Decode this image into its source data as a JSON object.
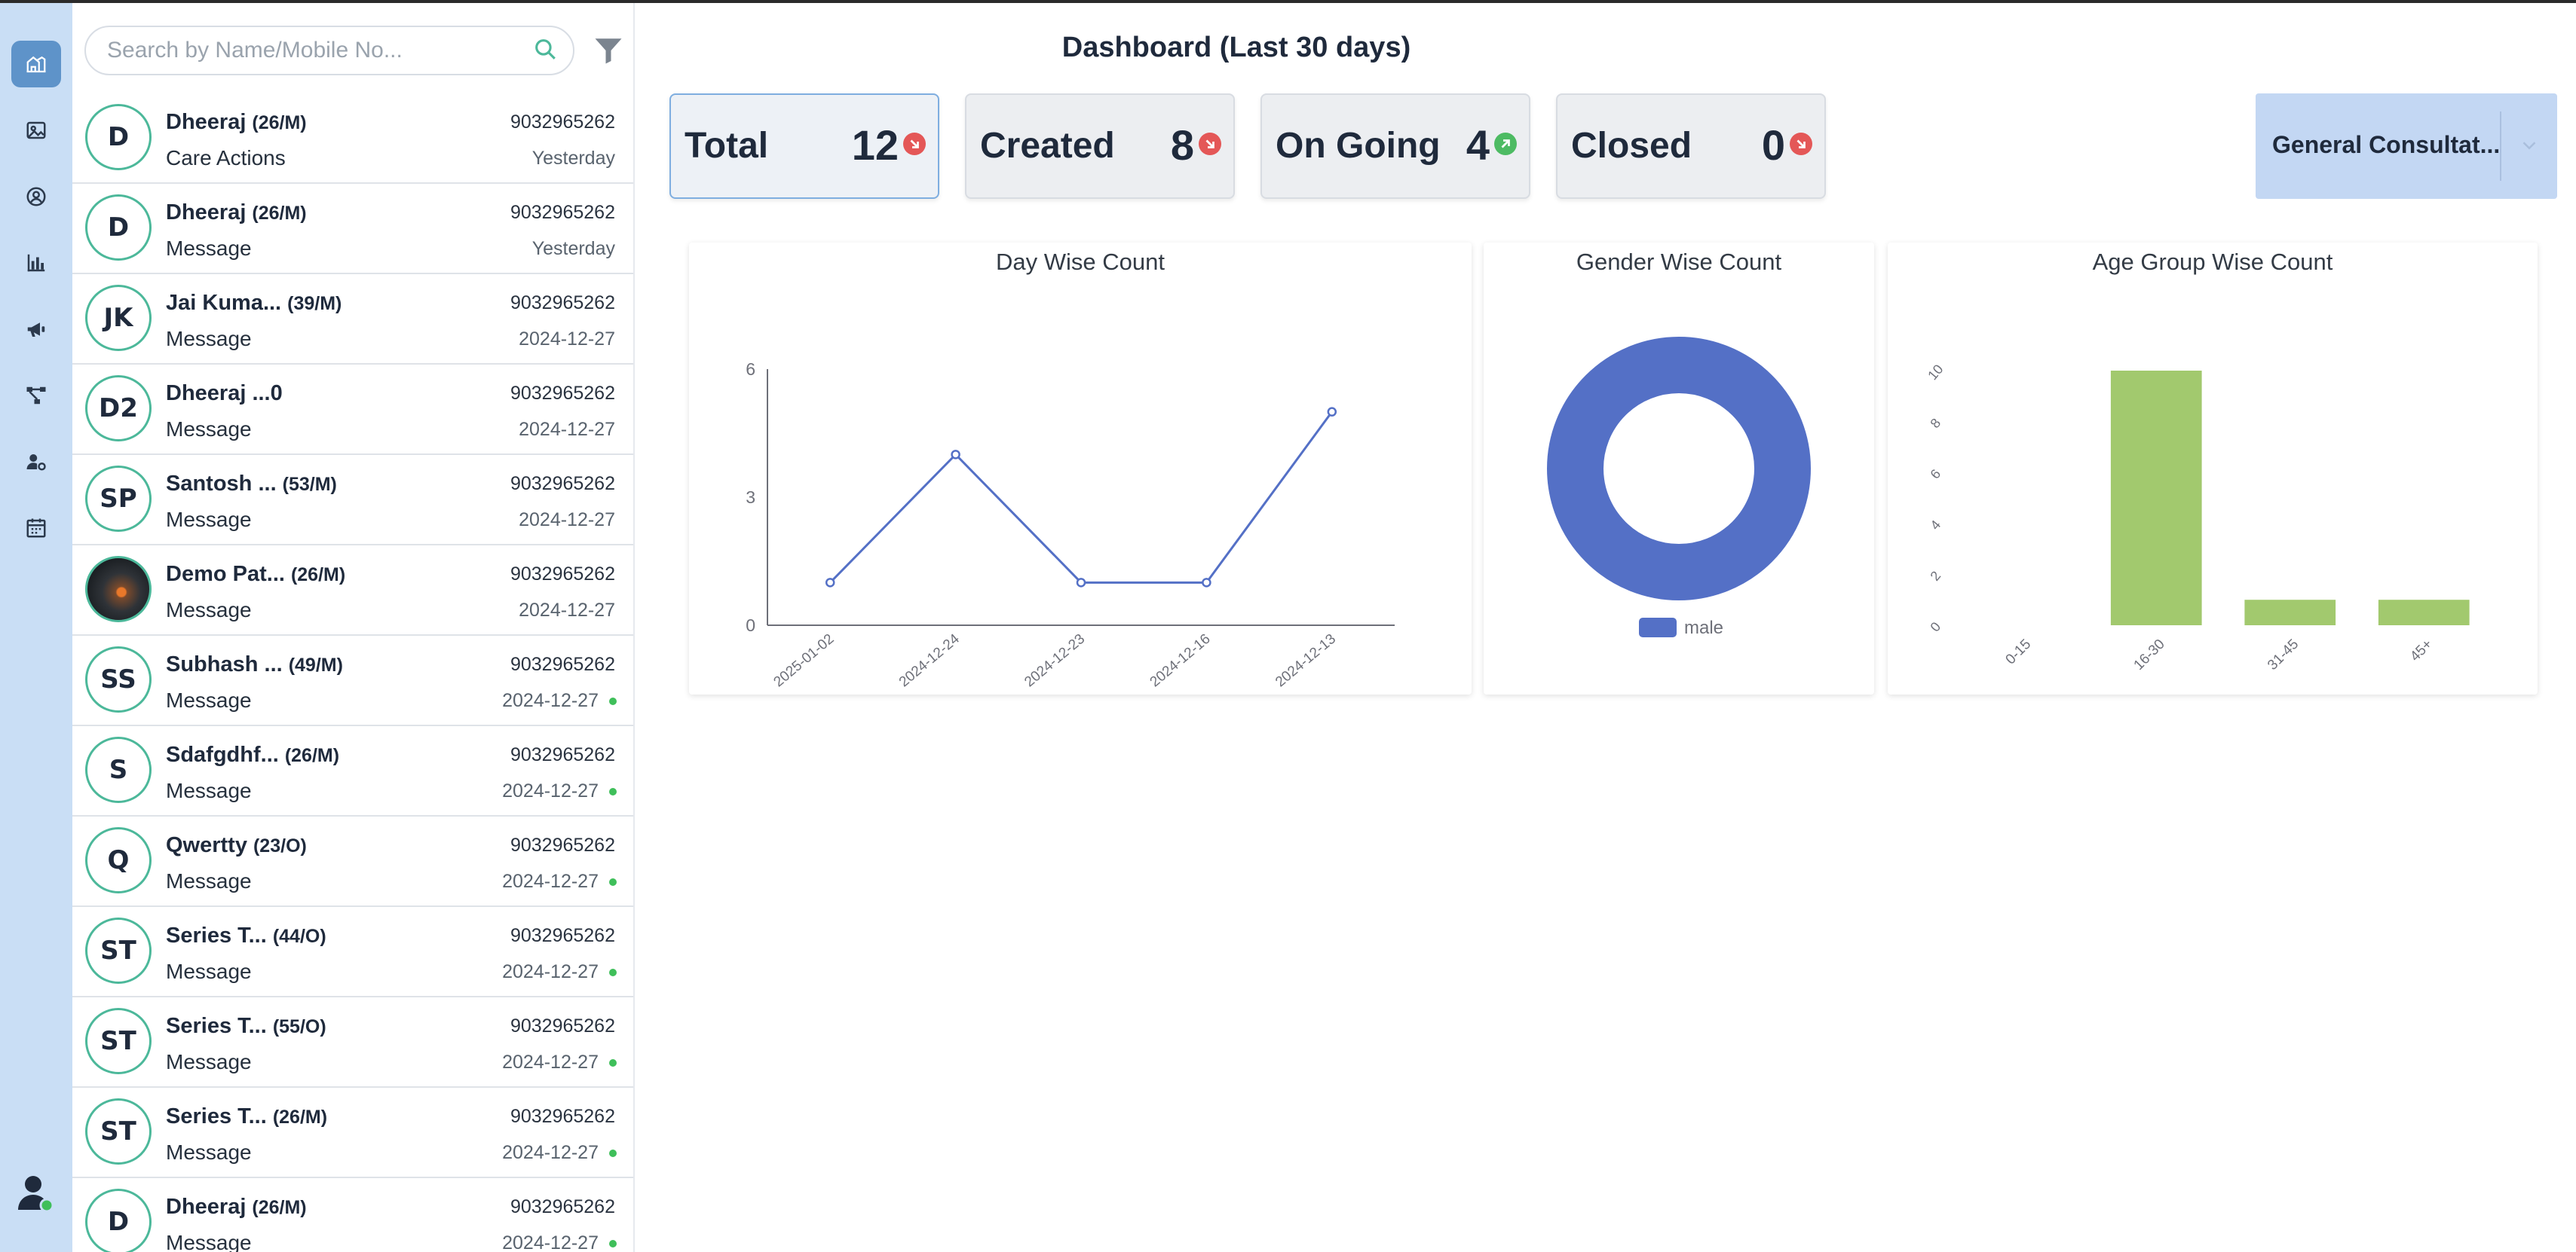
{
  "rail": {
    "items": [
      "dashboard-icon",
      "image-icon",
      "user-circle-icon",
      "bar-chart-icon",
      "megaphone-icon",
      "flow-icon",
      "user-gear-icon",
      "calendar-icon"
    ],
    "active": "dashboard-icon",
    "accent": "#5e93c9",
    "background": "#c9def5"
  },
  "search": {
    "placeholder": "Search by Name/Mobile No..."
  },
  "contacts": [
    {
      "initials": "D",
      "name": "Dheeraj",
      "meta": "(26/M)",
      "sub": "Care Actions",
      "phone": "9032965262",
      "date": "Yesterday",
      "dot": false
    },
    {
      "initials": "D",
      "name": "Dheeraj",
      "meta": "(26/M)",
      "sub": "Message",
      "phone": "9032965262",
      "date": "Yesterday",
      "dot": false
    },
    {
      "initials": "JK",
      "name": "Jai Kuma...",
      "meta": "(39/M)",
      "sub": "Message",
      "phone": "9032965262",
      "date": "2024-12-27",
      "dot": false
    },
    {
      "initials": "D2",
      "name": "Dheeraj ...0",
      "meta": "",
      "sub": "Message",
      "phone": "9032965262",
      "date": "2024-12-27",
      "dot": false
    },
    {
      "initials": "SP",
      "name": "Santosh ...",
      "meta": "(53/M)",
      "sub": "Message",
      "phone": "9032965262",
      "date": "2024-12-27",
      "dot": false
    },
    {
      "initials": "",
      "name": "Demo Pat...",
      "meta": "(26/M)",
      "sub": "Message",
      "phone": "9032965262",
      "date": "2024-12-27",
      "dot": false,
      "photo": true
    },
    {
      "initials": "SS",
      "name": "Subhash ...",
      "meta": "(49/M)",
      "sub": "Message",
      "phone": "9032965262",
      "date": "2024-12-27",
      "dot": true
    },
    {
      "initials": "S",
      "name": "Sdafgdhf...",
      "meta": "(26/M)",
      "sub": "Message",
      "phone": "9032965262",
      "date": "2024-12-27",
      "dot": true
    },
    {
      "initials": "Q",
      "name": "Qwertty",
      "meta": "(23/O)",
      "sub": "Message",
      "phone": "9032965262",
      "date": "2024-12-27",
      "dot": true
    },
    {
      "initials": "ST",
      "name": "Series T...",
      "meta": "(44/O)",
      "sub": "Message",
      "phone": "9032965262",
      "date": "2024-12-27",
      "dot": true
    },
    {
      "initials": "ST",
      "name": "Series T...",
      "meta": "(55/O)",
      "sub": "Message",
      "phone": "9032965262",
      "date": "2024-12-27",
      "dot": true
    },
    {
      "initials": "ST",
      "name": "Series T...",
      "meta": "(26/M)",
      "sub": "Message",
      "phone": "9032965262",
      "date": "2024-12-27",
      "dot": true
    },
    {
      "initials": "D",
      "name": "Dheeraj",
      "meta": "(26/M)",
      "sub": "Message",
      "phone": "9032965262",
      "date": "2024-12-27",
      "dot": true
    }
  ],
  "dashboard": {
    "title": "Dashboard (Last 30 days)",
    "stats": [
      {
        "label": "Total",
        "value": "12",
        "trend": "down"
      },
      {
        "label": "Created",
        "value": "8",
        "trend": "down"
      },
      {
        "label": "On Going",
        "value": "4",
        "trend": "up"
      },
      {
        "label": "Closed",
        "value": "0",
        "trend": "down"
      }
    ],
    "selected_stat": "Total",
    "consultation": {
      "selected": "General Consultat..."
    }
  },
  "chart_data": [
    {
      "type": "line",
      "title": "Day Wise Count",
      "x": [
        "2025-01-02",
        "2024-12-24",
        "2024-12-23",
        "2024-12-16",
        "2024-12-13"
      ],
      "values": [
        1,
        4,
        1,
        1,
        5
      ],
      "yticks": [
        "0",
        "3",
        "6"
      ],
      "ylim": [
        0,
        6
      ],
      "color": "#5470c6"
    },
    {
      "type": "pie",
      "title": "Gender Wise Count",
      "labels": [
        "male"
      ],
      "values": [
        12
      ],
      "legend": "bottom",
      "color": "#5470c6"
    },
    {
      "type": "bar",
      "title": "Age Group Wise Count",
      "categories": [
        "0-15",
        "16-30",
        "31-45",
        "45+"
      ],
      "values": [
        0,
        10,
        1,
        1
      ],
      "yticks": [
        "0",
        "2",
        "4",
        "6",
        "8",
        "10"
      ],
      "ylim": [
        0,
        10
      ],
      "color": "#a2c96e"
    }
  ]
}
